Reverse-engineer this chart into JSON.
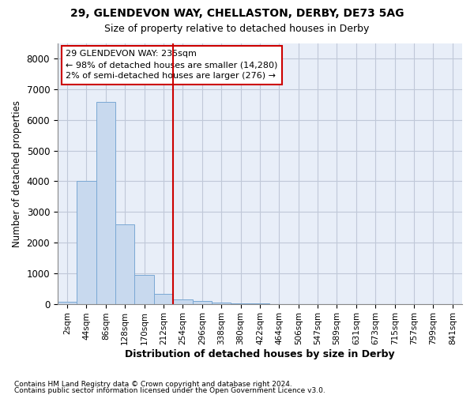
{
  "title1": "29, GLENDEVON WAY, CHELLASTON, DERBY, DE73 5AG",
  "title2": "Size of property relative to detached houses in Derby",
  "xlabel": "Distribution of detached houses by size in Derby",
  "ylabel": "Number of detached properties",
  "bin_labels": [
    "2sqm",
    "44sqm",
    "86sqm",
    "128sqm",
    "170sqm",
    "212sqm",
    "254sqm",
    "296sqm",
    "338sqm",
    "380sqm",
    "422sqm",
    "464sqm",
    "506sqm",
    "547sqm",
    "589sqm",
    "631sqm",
    "673sqm",
    "715sqm",
    "757sqm",
    "799sqm",
    "841sqm"
  ],
  "bar_heights": [
    60,
    4000,
    6600,
    2600,
    950,
    320,
    150,
    100,
    30,
    10,
    5,
    0,
    0,
    0,
    0,
    0,
    0,
    0,
    0,
    0,
    0
  ],
  "bar_color": "#c8d9ee",
  "bar_edge_color": "#7aa8d4",
  "vline_color": "#cc0000",
  "annotation_text": "29 GLENDEVON WAY: 235sqm\n← 98% of detached houses are smaller (14,280)\n2% of semi-detached houses are larger (276) →",
  "annotation_box_color": "white",
  "annotation_box_edge": "#cc0000",
  "ylim": [
    0,
    8500
  ],
  "yticks": [
    0,
    1000,
    2000,
    3000,
    4000,
    5000,
    6000,
    7000,
    8000
  ],
  "footer1": "Contains HM Land Registry data © Crown copyright and database right 2024.",
  "footer2": "Contains public sector information licensed under the Open Government Licence v3.0.",
  "grid_color": "#c0c8d8",
  "bg_color": "#e8eef8"
}
